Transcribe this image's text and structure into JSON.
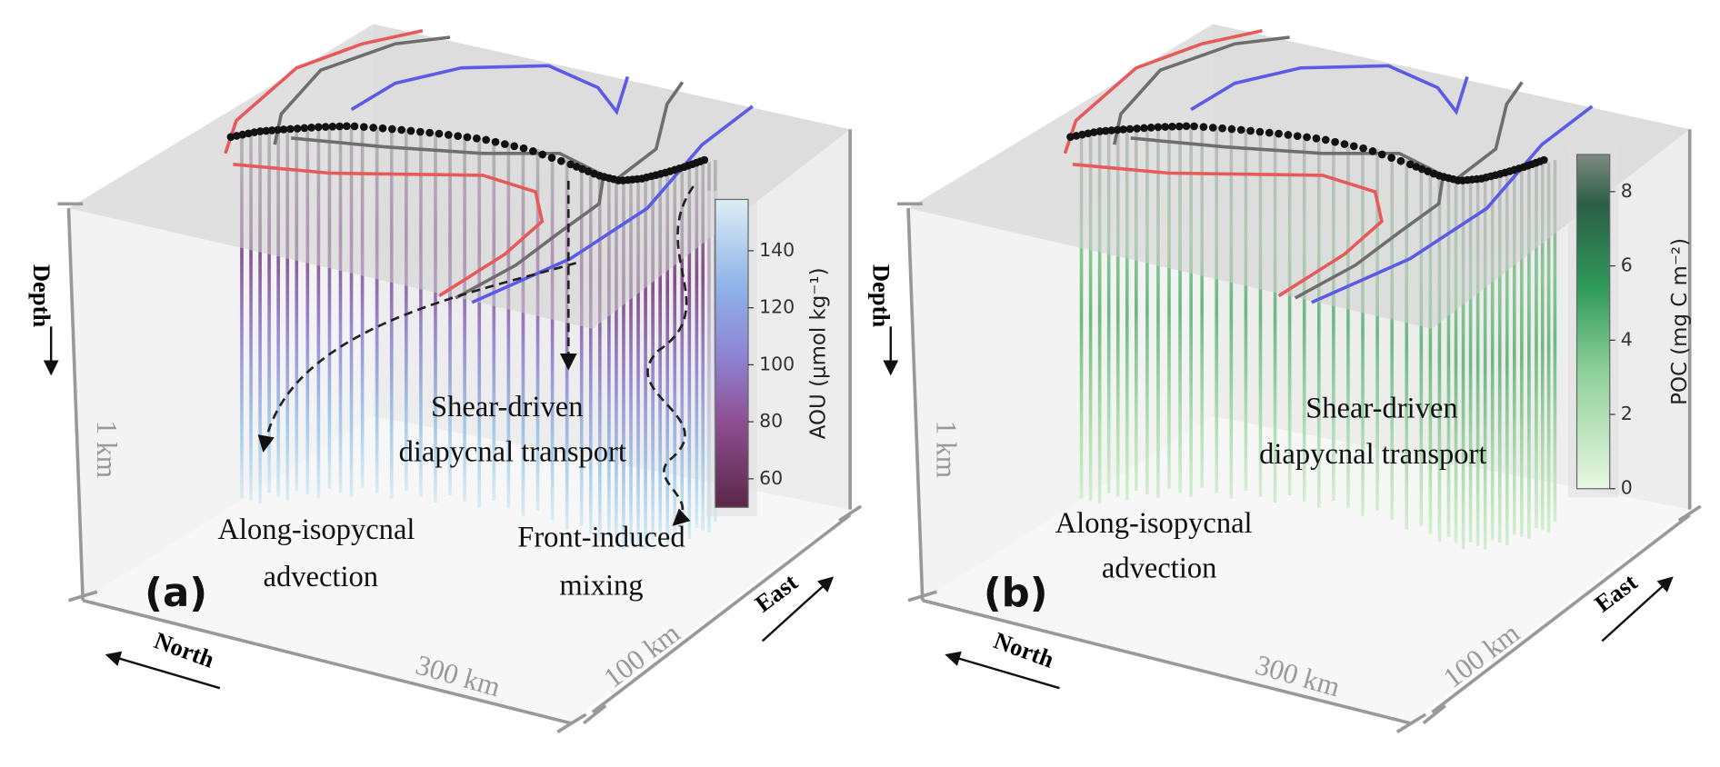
{
  "panels": [
    {
      "label": "(a)",
      "depth_label": "Depth",
      "depth_scale": "1 km",
      "north_label": "North",
      "north_scale": "300 km",
      "east_label": "East",
      "east_scale": "100 km",
      "annotations": [
        "Along-isopycnal",
        "advection",
        "Shear-driven",
        "diapycnal transport",
        "Front-induced",
        "mixing"
      ],
      "colorbar": {
        "label": "AOU (μmol kg⁻¹)",
        "lim": [
          50,
          158
        ],
        "ticks": [
          60,
          80,
          100,
          120,
          140
        ]
      }
    },
    {
      "label": "(b)",
      "depth_label": "Depth",
      "depth_scale": "1 km",
      "north_label": "North",
      "north_scale": "300 km",
      "east_label": "East",
      "east_scale": "100 km",
      "annotations": [
        "Along-isopycnal",
        "advection",
        "Shear-driven",
        "diapycnal transport"
      ],
      "colorbar": {
        "label": "POC (mg C m⁻²)",
        "lim": [
          0,
          9
        ],
        "ticks": [
          0,
          2,
          4,
          6,
          8
        ]
      }
    }
  ]
}
